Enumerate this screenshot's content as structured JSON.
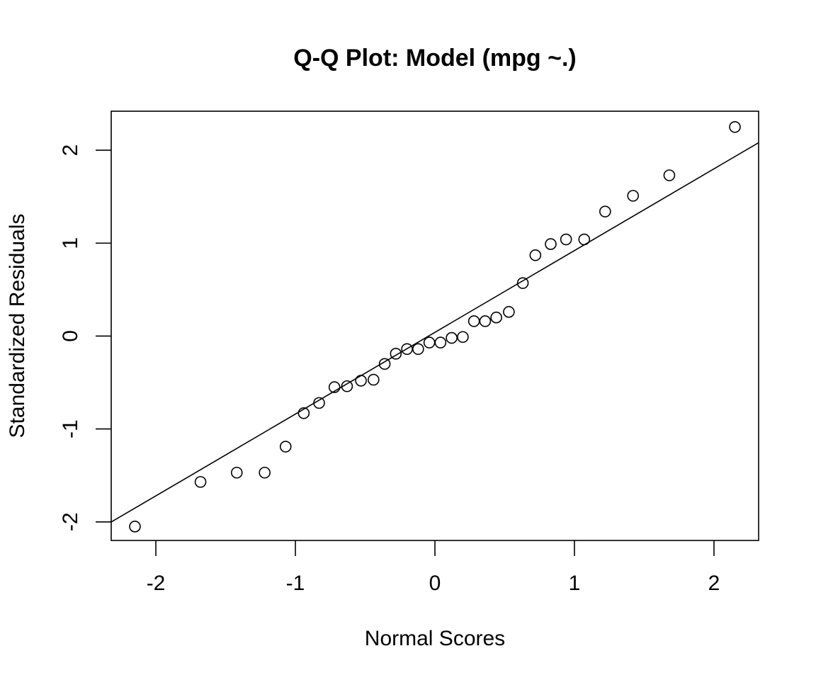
{
  "chart_data": {
    "type": "scatter",
    "title": "Q-Q Plot: Model (mpg ~.)",
    "xlabel": "Normal Scores",
    "ylabel": "Standardized Residuals",
    "xlim": [
      -2.32,
      2.32
    ],
    "ylim": [
      -2.2,
      2.42
    ],
    "x_ticks": [
      -2,
      -1,
      0,
      1,
      2
    ],
    "x_tick_labels": [
      "-2",
      "-1",
      "0",
      "1",
      "2"
    ],
    "y_ticks": [
      -2,
      -1,
      0,
      1,
      2
    ],
    "y_tick_labels": [
      "-2",
      "-1",
      "0",
      "1",
      "2"
    ],
    "grid": false,
    "reference_line": {
      "intercept": 0.04,
      "slope": 0.88
    },
    "points": {
      "x": [
        -2.15,
        -1.68,
        -1.42,
        -1.22,
        -1.07,
        -0.94,
        -0.83,
        -0.72,
        -0.63,
        -0.53,
        -0.44,
        -0.36,
        -0.28,
        -0.2,
        -0.12,
        -0.04,
        0.04,
        0.12,
        0.2,
        0.28,
        0.36,
        0.44,
        0.53,
        0.63,
        0.72,
        0.83,
        0.94,
        1.07,
        1.22,
        1.42,
        1.68,
        2.15
      ],
      "y": [
        -2.05,
        -1.57,
        -1.47,
        -1.47,
        -1.19,
        -0.83,
        -0.72,
        -0.55,
        -0.54,
        -0.48,
        -0.47,
        -0.3,
        -0.19,
        -0.14,
        -0.14,
        -0.07,
        -0.07,
        -0.02,
        -0.01,
        0.16,
        0.16,
        0.2,
        0.26,
        0.57,
        0.87,
        0.99,
        1.04,
        1.04,
        1.34,
        1.51,
        1.73,
        2.25
      ]
    }
  }
}
